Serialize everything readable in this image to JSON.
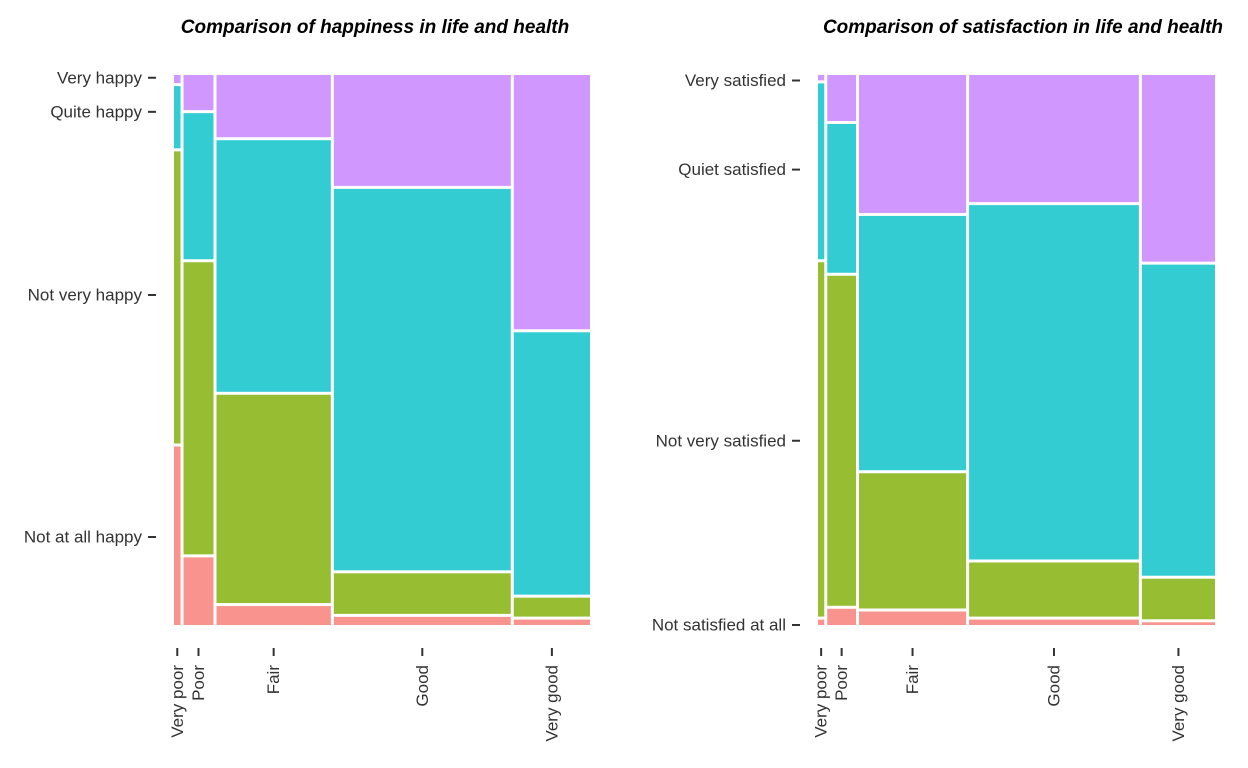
{
  "chart_data": [
    {
      "type": "mosaic",
      "title": "Comparison of happiness in life and health",
      "xlabel": "",
      "ylabel": "",
      "x_categories": [
        "Very poor",
        "Poor",
        "Fair",
        "Good",
        "Very good"
      ],
      "x_proportions": [
        0.012,
        0.055,
        0.21,
        0.325,
        0.14
      ],
      "y_categories": [
        "Not at all happy",
        "Not very happy",
        "Quite happy",
        "Very happy"
      ],
      "y_tick_positions": [
        0.16,
        0.6,
        0.933,
        0.995
      ],
      "columns": [
        {
          "category": "Very poor",
          "shares": [
            0.33,
            0.54,
            0.115,
            0.015
          ]
        },
        {
          "category": "Poor",
          "shares": [
            0.125,
            0.54,
            0.27,
            0.065
          ]
        },
        {
          "category": "Fair",
          "shares": [
            0.035,
            0.385,
            0.465,
            0.115
          ]
        },
        {
          "category": "Good",
          "shares": [
            0.015,
            0.075,
            0.705,
            0.205
          ]
        },
        {
          "category": "Very good",
          "shares": [
            0.01,
            0.035,
            0.485,
            0.47
          ]
        }
      ],
      "colors": [
        "#F8948D",
        "#97BE33",
        "#33CCD2",
        "#D098FE"
      ],
      "background": "#ffffff",
      "legend": "none"
    },
    {
      "type": "mosaic",
      "title": "Comparison of satisfaction in life and health",
      "xlabel": "",
      "ylabel": "",
      "x_categories": [
        "Very poor",
        "Poor",
        "Fair",
        "Good",
        "Very good"
      ],
      "x_proportions": [
        0.012,
        0.055,
        0.205,
        0.325,
        0.14
      ],
      "y_categories": [
        "Not satisfied at all",
        "Not very satisfied",
        "Quiet satisfied",
        "Very satisfied"
      ],
      "y_tick_positions": [
        0.0,
        0.335,
        0.828,
        0.99
      ],
      "columns": [
        {
          "category": "Very poor",
          "shares": [
            0.01,
            0.655,
            0.325,
            0.01
          ]
        },
        {
          "category": "Poor",
          "shares": [
            0.03,
            0.61,
            0.275,
            0.085
          ]
        },
        {
          "category": "Fair",
          "shares": [
            0.025,
            0.25,
            0.47,
            0.255
          ]
        },
        {
          "category": "Good",
          "shares": [
            0.01,
            0.1,
            0.655,
            0.235
          ]
        },
        {
          "category": "Very good",
          "shares": [
            0.005,
            0.075,
            0.575,
            0.345
          ]
        }
      ],
      "colors": [
        "#F8948D",
        "#97BE33",
        "#33CCD2",
        "#D098FE"
      ],
      "background": "#ffffff",
      "legend": "none"
    }
  ]
}
